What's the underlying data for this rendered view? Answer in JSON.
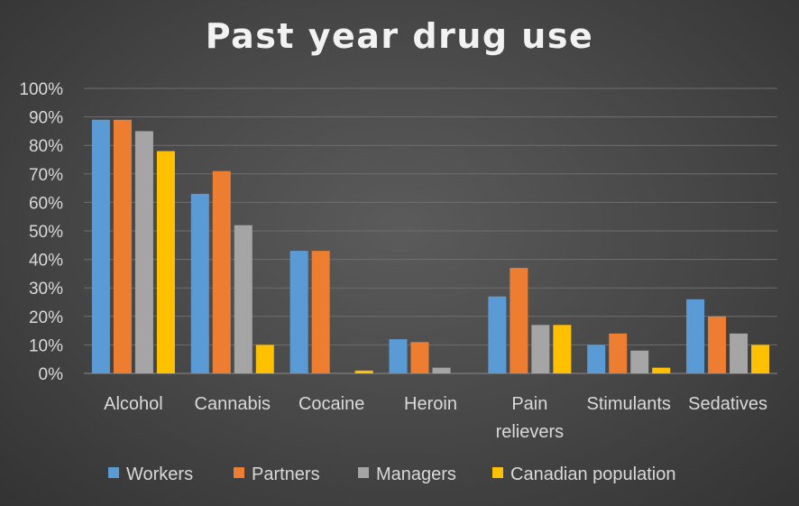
{
  "chart_data": {
    "type": "bar",
    "title": "Past year drug use",
    "categories": [
      "Alcohol",
      "Cannabis",
      "Cocaine",
      "Heroin",
      "Pain relievers",
      "Stimulants",
      "Sedatives"
    ],
    "category_lines": [
      [
        "Alcohol"
      ],
      [
        "Cannabis"
      ],
      [
        "Cocaine"
      ],
      [
        "Heroin"
      ],
      [
        "Pain",
        "relievers"
      ],
      [
        "Stimulants"
      ],
      [
        "Sedatives"
      ]
    ],
    "series": [
      {
        "name": "Workers",
        "values": [
          89,
          63,
          43,
          12,
          27,
          10,
          26
        ],
        "color": "#5b9bd5"
      },
      {
        "name": "Partners",
        "values": [
          89,
          71,
          43,
          11,
          37,
          14,
          20
        ],
        "color": "#ed7d31"
      },
      {
        "name": "Managers",
        "values": [
          85,
          52,
          0,
          2,
          17,
          8,
          14
        ],
        "color": "#a5a5a5"
      },
      {
        "name": "Canadian population",
        "values": [
          78,
          10,
          1,
          0,
          17,
          2,
          10
        ],
        "color": "#ffc000"
      }
    ],
    "yticks": [
      "0%",
      "10%",
      "20%",
      "30%",
      "40%",
      "50%",
      "60%",
      "70%",
      "80%",
      "90%",
      "100%"
    ],
    "ylim": [
      0,
      100
    ],
    "xlabel": "",
    "ylabel": "",
    "grid": true,
    "legend": "bottom"
  }
}
